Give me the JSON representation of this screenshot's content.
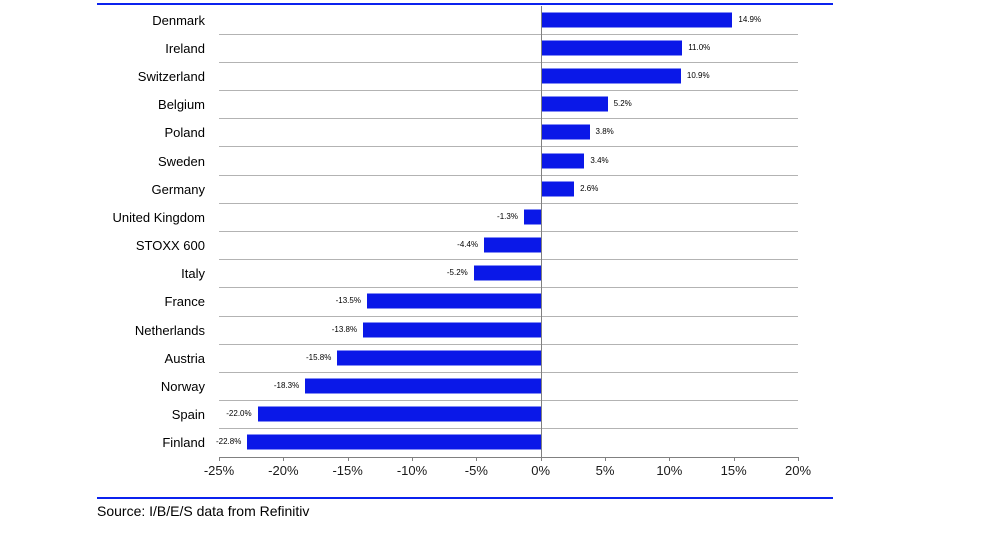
{
  "chart_data": {
    "type": "bar",
    "orientation": "horizontal",
    "title": "",
    "xlabel": "",
    "ylabel": "",
    "legend": "none",
    "grid": "horizontal row separators, vertical zero axis line",
    "xlim": [
      -25,
      20
    ],
    "bar_color": "#0a18e8",
    "rule_color": "#0b22ee",
    "categories": [
      "Denmark",
      "Ireland",
      "Switzerland",
      "Belgium",
      "Poland",
      "Sweden",
      "Germany",
      "United Kingdom",
      "STOXX 600",
      "Italy",
      "France",
      "Netherlands",
      "Austria",
      "Norway",
      "Spain",
      "Finland"
    ],
    "values": [
      14.9,
      11.0,
      10.9,
      5.2,
      3.8,
      3.4,
      2.6,
      -1.3,
      -4.4,
      -5.2,
      -13.5,
      -13.8,
      -15.8,
      -18.3,
      -22.0,
      -22.8
    ],
    "value_labels": [
      "14.9%",
      "11.0%",
      "10.9%",
      "5.2%",
      "3.8%",
      "3.4%",
      "2.6%",
      "-1.3%",
      "-4.4%",
      "-5.2%",
      "-13.5%",
      "-13.8%",
      "-15.8%",
      "-18.3%",
      "-22.0%",
      "-22.8%"
    ],
    "x_ticks": [
      {
        "v": -25,
        "label": "-25%"
      },
      {
        "v": -20,
        "label": "-20%"
      },
      {
        "v": -15,
        "label": "-15%"
      },
      {
        "v": -10,
        "label": "-10%"
      },
      {
        "v": -5,
        "label": "-5%"
      },
      {
        "v": 0,
        "label": "0%"
      },
      {
        "v": 5,
        "label": "5%"
      },
      {
        "v": 10,
        "label": "10%"
      },
      {
        "v": 15,
        "label": "15%"
      },
      {
        "v": 20,
        "label": "20%"
      }
    ]
  },
  "source": {
    "text": "Source: I/B/E/S data from Refinitiv"
  }
}
